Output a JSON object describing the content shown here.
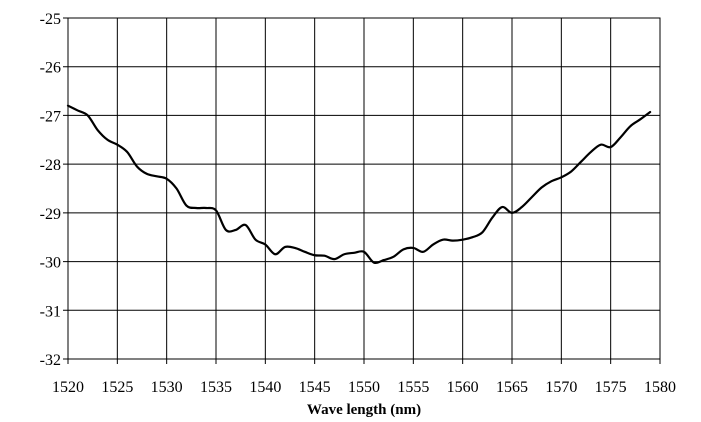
{
  "chart_data": {
    "type": "line",
    "title": "",
    "xlabel": "Wave length (nm)",
    "ylabel": "",
    "xlim": [
      1520,
      1580
    ],
    "ylim": [
      -32,
      -25
    ],
    "x_ticks": [
      1520,
      1525,
      1530,
      1535,
      1540,
      1545,
      1550,
      1555,
      1560,
      1565,
      1570,
      1575,
      1580
    ],
    "x_tick_labels": [
      "1520",
      "1525",
      "1530",
      "1535",
      "1540",
      "1545",
      "1550",
      "1555",
      "1560",
      "1565",
      "1570",
      "1575",
      "1580"
    ],
    "y_ticks": [
      -32,
      -31,
      -30,
      -29,
      -28,
      -27,
      -26,
      -25
    ],
    "y_tick_labels": [
      "-32",
      "-31",
      "-30",
      "-29",
      "-28",
      "-27",
      "-26",
      "-25"
    ],
    "grid": true,
    "line_color": "#000000",
    "series": [
      {
        "x": [
          1520,
          1521,
          1522,
          1523,
          1524,
          1525,
          1526,
          1527,
          1528,
          1529,
          1530,
          1531,
          1532,
          1533,
          1534,
          1535,
          1536,
          1537,
          1538,
          1539,
          1540,
          1541,
          1542,
          1543,
          1544,
          1545,
          1546,
          1547,
          1548,
          1549,
          1550,
          1551,
          1552,
          1553,
          1554,
          1555,
          1556,
          1557,
          1558,
          1559,
          1560,
          1561,
          1562,
          1563,
          1564,
          1565,
          1566,
          1567,
          1568,
          1569,
          1570,
          1571,
          1572,
          1573,
          1574,
          1575,
          1576,
          1577,
          1578,
          1579
        ],
        "values": [
          -26.8,
          -26.9,
          -27.0,
          -27.3,
          -27.5,
          -27.6,
          -27.75,
          -28.05,
          -28.2,
          -28.25,
          -28.3,
          -28.5,
          -28.85,
          -28.9,
          -28.9,
          -28.95,
          -29.35,
          -29.35,
          -29.25,
          -29.55,
          -29.65,
          -29.85,
          -29.7,
          -29.72,
          -29.8,
          -29.87,
          -29.88,
          -29.95,
          -29.85,
          -29.82,
          -29.8,
          -30.02,
          -29.97,
          -29.9,
          -29.75,
          -29.72,
          -29.8,
          -29.65,
          -29.55,
          -29.57,
          -29.55,
          -29.5,
          -29.4,
          -29.1,
          -28.88,
          -29.0,
          -28.88,
          -28.68,
          -28.48,
          -28.35,
          -28.27,
          -28.15,
          -27.95,
          -27.75,
          -27.6,
          -27.65,
          -27.45,
          -27.22,
          -27.08,
          -26.93
        ]
      }
    ]
  }
}
